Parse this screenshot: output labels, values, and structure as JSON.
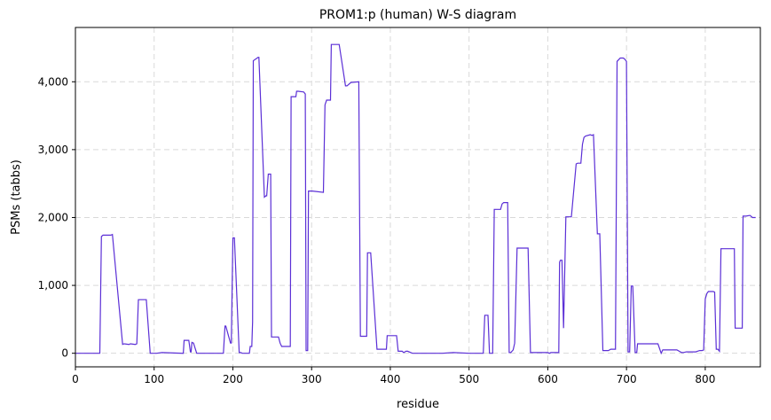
{
  "chart_data": {
    "type": "line",
    "title": "PROM1:p (human) W-S diagram",
    "xlabel": "residue",
    "ylabel": "PSMs (tabbs)",
    "xlim": [
      0,
      870
    ],
    "ylim": [
      -200,
      4800
    ],
    "x_ticks": [
      0,
      100,
      200,
      300,
      400,
      500,
      600,
      700,
      800
    ],
    "y_ticks": [
      0,
      1000,
      2000,
      3000,
      4000
    ],
    "x_tick_labels": [
      "0",
      "100",
      "200",
      "300",
      "400",
      "500",
      "600",
      "700",
      "800"
    ],
    "y_tick_labels": [
      "0",
      "1,000",
      "2,000",
      "3,000",
      "4,000"
    ],
    "grid": true,
    "line_color": "#5b2fd6",
    "series": [
      {
        "x": [
          0,
          29,
          31,
          33,
          35,
          45,
          47,
          60,
          62,
          68,
          70,
          76,
          78,
          80,
          90,
          95,
          100,
          103,
          110,
          137,
          138,
          144,
          146,
          147,
          148,
          150,
          154,
          156,
          158,
          188,
          190,
          191,
          197,
          198,
          200,
          201,
          202,
          208,
          209,
          210,
          212,
          213,
          215,
          221,
          222,
          224,
          225,
          226,
          232,
          233,
          240,
          242,
          243,
          245,
          246,
          248,
          249,
          255,
          256,
          258,
          260,
          262,
          264,
          265,
          273,
          274,
          276,
          280,
          281,
          282,
          283,
          290,
          292,
          293,
          294,
          295,
          296,
          297,
          298,
          299,
          301,
          315,
          317,
          319,
          320,
          322,
          324,
          325,
          329,
          331,
          333,
          335,
          343,
          345,
          350,
          351,
          360,
          362,
          365,
          370,
          371,
          372,
          373,
          374,
          375,
          383,
          385,
          387,
          395,
          396,
          398,
          406,
          408,
          410,
          415,
          417,
          420,
          422,
          426,
          428,
          440,
          460,
          466,
          480,
          500,
          510,
          512,
          513,
          518,
          520,
          522,
          524,
          526,
          530,
          532,
          540,
          542,
          544,
          546,
          549,
          551,
          552,
          553,
          556,
          558,
          561,
          563,
          575,
          578,
          586,
          588,
          600,
          602,
          604,
          612,
          614,
          615,
          616,
          617,
          618,
          620,
          623,
          624,
          625,
          626,
          627,
          630,
          636,
          638,
          640,
          642,
          644,
          646,
          648,
          654,
          656,
          658,
          663,
          665,
          666,
          670,
          675,
          677,
          680,
          684,
          686,
          688,
          692,
          694,
          696,
          698,
          700,
          702,
          704,
          706,
          707,
          708,
          711,
          712,
          713,
          714,
          716,
          726,
          738,
          740,
          744,
          746,
          748,
          758,
          762,
          764,
          770,
          772,
          776,
          780,
          786,
          788,
          790,
          793,
          796,
          798,
          800,
          802,
          804,
          810,
          812,
          814,
          816,
          818,
          820,
          823,
          825,
          828,
          837,
          838,
          839,
          846,
          847,
          848,
          852,
          856,
          857,
          860,
          862,
          864
        ],
        "values": [
          0,
          0,
          0,
          1720,
          1740,
          1740,
          1750,
          130,
          140,
          130,
          140,
          130,
          140,
          790,
          790,
          0,
          0,
          0,
          10,
          0,
          190,
          190,
          20,
          20,
          160,
          150,
          0,
          0,
          0,
          0,
          400,
          400,
          150,
          150,
          1700,
          1700,
          1700,
          10,
          10,
          10,
          0,
          0,
          0,
          0,
          100,
          100,
          460,
          4310,
          4360,
          4360,
          2300,
          2320,
          2320,
          2640,
          2640,
          2640,
          240,
          240,
          240,
          240,
          150,
          100,
          100,
          100,
          100,
          3780,
          3780,
          3780,
          3860,
          3860,
          3860,
          3850,
          3820,
          40,
          40,
          40,
          2390,
          2390,
          2390,
          2390,
          2390,
          2370,
          3660,
          3730,
          3730,
          3730,
          3730,
          4550,
          4550,
          4550,
          4550,
          4550,
          3940,
          3940,
          3990,
          3990,
          4000,
          250,
          250,
          250,
          1480,
          1480,
          1480,
          1480,
          1480,
          60,
          60,
          60,
          60,
          260,
          260,
          260,
          260,
          30,
          30,
          10,
          30,
          30,
          10,
          0,
          0,
          0,
          0,
          10,
          0,
          0,
          0,
          0,
          0,
          560,
          560,
          560,
          0,
          0,
          2120,
          2120,
          2200,
          2220,
          2220,
          2220,
          10,
          10,
          10,
          50,
          150,
          1550,
          1550,
          1550,
          10,
          10,
          10,
          10,
          0,
          10,
          10,
          10,
          1340,
          1370,
          1370,
          1370,
          370,
          2010,
          2010,
          2010,
          2010,
          2010,
          2010,
          2790,
          2800,
          2800,
          2800,
          3080,
          3180,
          3200,
          3220,
          3210,
          3220,
          1760,
          1760,
          1760,
          40,
          40,
          40,
          60,
          60,
          60,
          4300,
          4350,
          4350,
          4350,
          4330,
          4300,
          20,
          20,
          990,
          990,
          990,
          10,
          10,
          10,
          140,
          140,
          140,
          140,
          140,
          0,
          50,
          50,
          50,
          50,
          50,
          10,
          10,
          20,
          20,
          20,
          20,
          30,
          40,
          40,
          50,
          800,
          880,
          910,
          910,
          900,
          60,
          60,
          30,
          1540,
          1540,
          1540,
          1540,
          1540,
          370,
          370,
          370,
          370,
          2020,
          2020,
          2030,
          2030,
          2000,
          2000,
          2000
        ]
      }
    ]
  }
}
